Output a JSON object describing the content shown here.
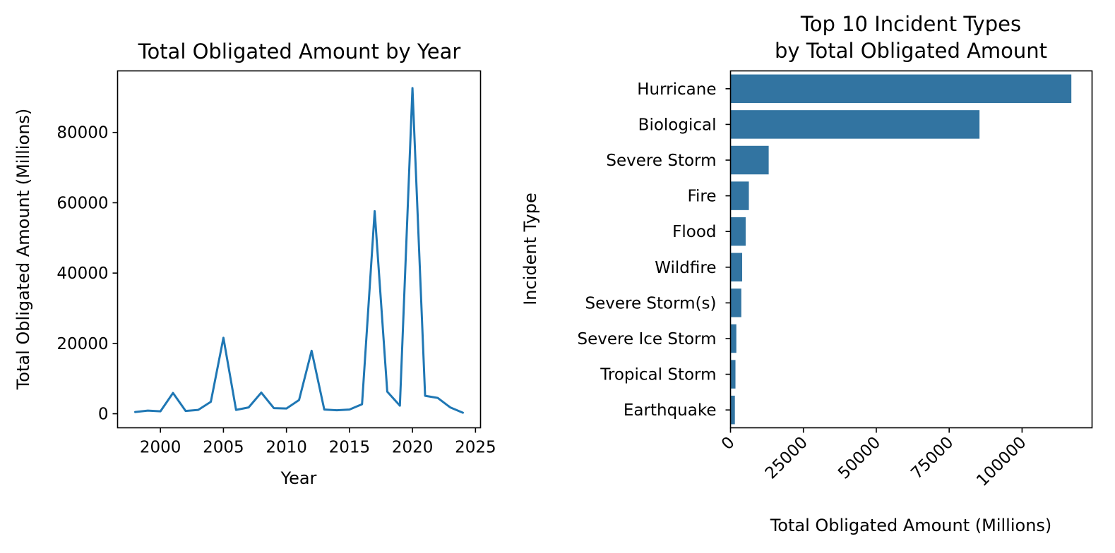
{
  "chart_data": [
    {
      "type": "line",
      "title": "Total Obligated Amount by Year",
      "xlabel": "Year",
      "ylabel": "Total Obligated Amount (Millions)",
      "xlim": [
        1996.6,
        2025.4
      ],
      "ylim": [
        -4000,
        97500
      ],
      "xticks": [
        2000,
        2005,
        2010,
        2015,
        2020,
        2025
      ],
      "yticks": [
        0,
        20000,
        40000,
        60000,
        80000
      ],
      "grid": false,
      "color": "#1f77b4",
      "x": [
        1998,
        1999,
        2000,
        2001,
        2002,
        2003,
        2004,
        2005,
        2006,
        2007,
        2008,
        2009,
        2010,
        2011,
        2012,
        2013,
        2014,
        2015,
        2016,
        2017,
        2018,
        2019,
        2020,
        2021,
        2022,
        2023,
        2024
      ],
      "y": [
        500,
        900,
        700,
        5900,
        800,
        1100,
        3400,
        21600,
        1100,
        1800,
        6000,
        1600,
        1500,
        3900,
        17900,
        1200,
        1000,
        1200,
        2700,
        57600,
        6300,
        2300,
        92600,
        5100,
        4500,
        1800,
        300
      ]
    },
    {
      "type": "bar",
      "orientation": "horizontal",
      "title": [
        "Top 10 Incident Types",
        "by Total Obligated Amount"
      ],
      "xlabel": "Total Obligated Amount (Millions)",
      "ylabel": "Incident Type",
      "xlim": [
        0,
        124000
      ],
      "xticks": [
        0,
        25000,
        50000,
        75000,
        100000
      ],
      "xtick_rotation": 45,
      "grid": false,
      "color": "#3274a1",
      "categories": [
        "Hurricane",
        "Biological",
        "Severe Storm",
        "Fire",
        "Flood",
        "Wildfire",
        "Severe Storm(s)",
        "Severe Ice Storm",
        "Tropical Storm",
        "Earthquake"
      ],
      "values": [
        116900,
        85400,
        13100,
        6300,
        5200,
        4000,
        3700,
        2000,
        1700,
        1500
      ]
    }
  ]
}
